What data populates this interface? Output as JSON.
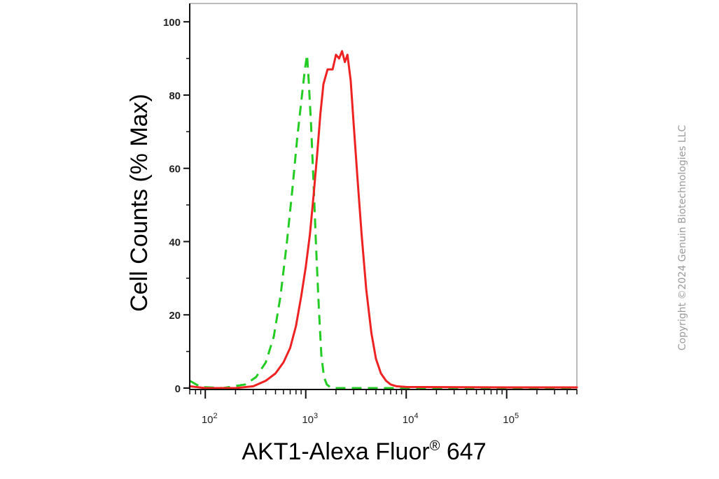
{
  "chart_data": {
    "type": "line",
    "xlabel": "AKT1-Alexa Fluor",
    "xlabel_sup": "®",
    "xlabel_suffix": " 647",
    "ylabel": "Cell Counts (% Max)",
    "x_scale": "log",
    "xlim": [
      70,
      500000
    ],
    "ylim": [
      0,
      105
    ],
    "y_ticks": [
      0,
      20,
      40,
      60,
      80,
      100
    ],
    "x_ticks": [
      {
        "value": 100,
        "base": "10",
        "exp": "2"
      },
      {
        "value": 1000,
        "base": "10",
        "exp": "3"
      },
      {
        "value": 10000,
        "base": "10",
        "exp": "4"
      },
      {
        "value": 100000,
        "base": "10",
        "exp": "5"
      }
    ],
    "grid": false,
    "legend": "none",
    "series": [
      {
        "color": "#22cc22",
        "style": "dashed",
        "points": [
          [
            70,
            2
          ],
          [
            90,
            0.3
          ],
          [
            150,
            0
          ],
          [
            250,
            1
          ],
          [
            320,
            3
          ],
          [
            400,
            7
          ],
          [
            480,
            14
          ],
          [
            560,
            25
          ],
          [
            650,
            40
          ],
          [
            740,
            55
          ],
          [
            820,
            68
          ],
          [
            900,
            78
          ],
          [
            980,
            87
          ],
          [
            1030,
            91
          ],
          [
            1070,
            84
          ],
          [
            1130,
            72
          ],
          [
            1200,
            55
          ],
          [
            1270,
            38
          ],
          [
            1350,
            22
          ],
          [
            1430,
            9
          ],
          [
            1520,
            3
          ],
          [
            1620,
            1
          ],
          [
            1800,
            0
          ],
          [
            2500,
            0
          ],
          [
            8000,
            0
          ],
          [
            100000,
            0
          ],
          [
            500000,
            0
          ]
        ]
      },
      {
        "color": "#ee2222",
        "style": "solid",
        "points": [
          [
            70,
            0.5
          ],
          [
            100,
            0
          ],
          [
            200,
            0
          ],
          [
            300,
            0.5
          ],
          [
            400,
            2
          ],
          [
            500,
            4
          ],
          [
            600,
            7
          ],
          [
            700,
            11
          ],
          [
            800,
            17
          ],
          [
            900,
            25
          ],
          [
            1000,
            33
          ],
          [
            1100,
            42
          ],
          [
            1200,
            53
          ],
          [
            1300,
            64
          ],
          [
            1400,
            75
          ],
          [
            1500,
            83
          ],
          [
            1650,
            87
          ],
          [
            1850,
            87
          ],
          [
            2000,
            91
          ],
          [
            2150,
            90
          ],
          [
            2300,
            92
          ],
          [
            2450,
            89
          ],
          [
            2600,
            91
          ],
          [
            2800,
            84
          ],
          [
            3000,
            72
          ],
          [
            3300,
            56
          ],
          [
            3600,
            42
          ],
          [
            4000,
            27
          ],
          [
            4500,
            15
          ],
          [
            5000,
            8
          ],
          [
            5600,
            4
          ],
          [
            6300,
            2
          ],
          [
            7000,
            1
          ],
          [
            8000,
            0.5
          ],
          [
            10000,
            0.3
          ],
          [
            100000,
            0.2
          ],
          [
            500000,
            0.2
          ]
        ]
      }
    ]
  },
  "copyright": "Copyright ©2024 Genuin Biotechnologies LLC"
}
